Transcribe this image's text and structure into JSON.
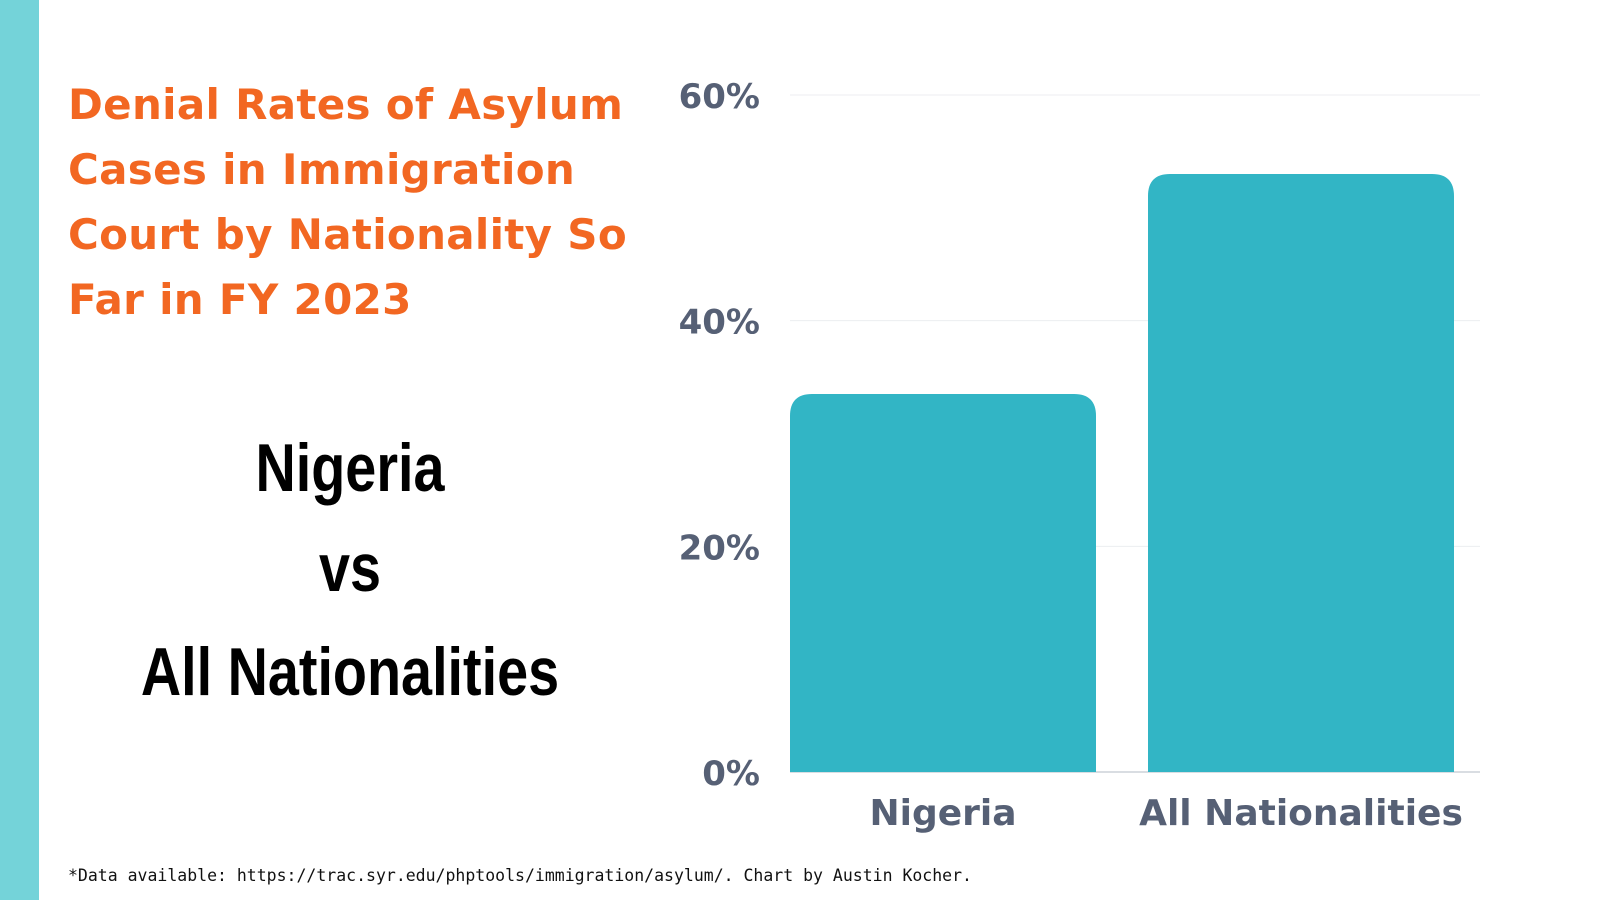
{
  "title": "Denial Rates of Asylum Cases in Immigration Court by Nationality So Far in FY 2023",
  "comparison": {
    "line1": "Nigeria",
    "line2": "vs",
    "line3": "All Nationalities"
  },
  "footnote": "*Data available: https://trac.syr.edu/phptools/immigration/asylum/. Chart by Austin Kocher.",
  "colors": {
    "accent_stripe": "#74d3d9",
    "title": "#f26722",
    "bar": "#32b5c5",
    "axis_text": "#566075"
  },
  "chart_data": {
    "type": "bar",
    "categories": [
      "Nigeria",
      "All Nationalities"
    ],
    "values": [
      33.5,
      53
    ],
    "unit": "%",
    "ylim": [
      0,
      60
    ],
    "yticks": [
      0,
      20,
      40,
      60
    ],
    "ytick_labels": [
      "0%",
      "20%",
      "40%",
      "60%"
    ],
    "xlabel": "",
    "ylabel": "",
    "grid": true,
    "legend": "none"
  }
}
